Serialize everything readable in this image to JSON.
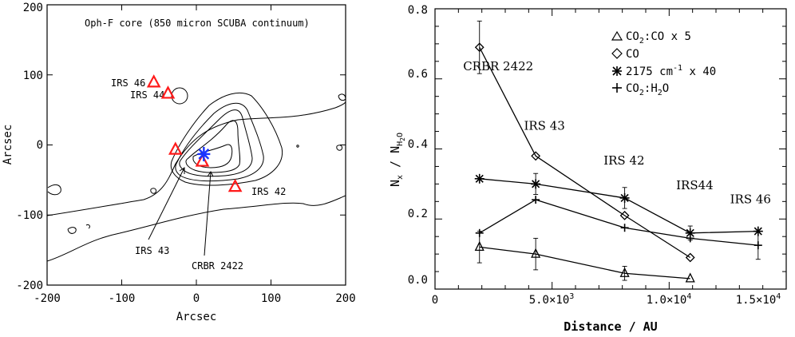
{
  "chart_data": [
    {
      "type": "contour",
      "title": "Oph-F core (850 micron SCUBA continuum)",
      "xlabel": "Arcsec",
      "ylabel": "Arcsec",
      "xlim": [
        -200,
        200
      ],
      "ylim": [
        -200,
        200
      ],
      "xticks": [
        -200,
        -100,
        0,
        100,
        200
      ],
      "yticks": [
        -200,
        -100,
        0,
        100,
        200
      ],
      "sources_triangles": [
        {
          "label": "IRS 46",
          "x": -57,
          "y": 89
        },
        {
          "label": "IRS 44",
          "x": -38,
          "y": 73
        },
        {
          "label": "IRS 43",
          "x": -28,
          "y": -7
        },
        {
          "label": "CRBR 2422",
          "x": 8,
          "y": -24
        },
        {
          "label": "IRS 42",
          "x": 52,
          "y": -60
        }
      ],
      "star_marker": {
        "x": 10,
        "y": -13,
        "color": "#1a33ff"
      },
      "triangle_color": "#ff1a1a"
    },
    {
      "type": "line",
      "xlabel": "Distance / AU",
      "ylabel": "N_x / N_H2O",
      "xlim": [
        0,
        15000
      ],
      "ylim": [
        0,
        0.8
      ],
      "xticks": [
        {
          "value": 0,
          "label": "0"
        },
        {
          "value": 5000,
          "mant": "5.0",
          "exp": "3"
        },
        {
          "value": 10000,
          "mant": "1.0",
          "exp": "4"
        },
        {
          "value": 15000,
          "mant": "1.5",
          "exp": "4"
        }
      ],
      "yticks": [
        "0.0",
        "0.2",
        "0.4",
        "0.6",
        "0.8"
      ],
      "legend_position": "top-right",
      "series": [
        {
          "name": "CO2:CO x 5",
          "marker": "triangle",
          "x": [
            1900,
            4300,
            8100,
            10900
          ],
          "y": [
            0.12,
            0.1,
            0.045,
            0.03
          ],
          "err": [
            0.045,
            0.045,
            0.02,
            0
          ]
        },
        {
          "name": "CO",
          "marker": "diamond",
          "x": [
            1900,
            4300,
            8100,
            10900
          ],
          "y": [
            0.69,
            0.38,
            0.21,
            0.09
          ],
          "err": [
            0.075,
            0,
            0,
            0
          ]
        },
        {
          "name": "2175 cm-1 x 40",
          "marker": "asterisk",
          "x": [
            1900,
            4300,
            8100,
            10900,
            13800
          ],
          "y": [
            0.315,
            0.3,
            0.26,
            0.16,
            0.165
          ],
          "err": [
            0,
            0.03,
            0.03,
            0.02,
            0
          ]
        },
        {
          "name": "CO2:H2O",
          "marker": "plus",
          "x": [
            1900,
            4300,
            8100,
            10900,
            13800
          ],
          "y": [
            0.16,
            0.255,
            0.175,
            0.145,
            0.125
          ],
          "err": [
            0,
            0,
            0,
            0,
            0.04
          ]
        }
      ],
      "annotations": [
        {
          "text": "CRBR 2422",
          "x": 1200,
          "y": 0.625
        },
        {
          "text": "IRS 43",
          "x": 3800,
          "y": 0.455
        },
        {
          "text": "IRS 42",
          "x": 7200,
          "y": 0.355
        },
        {
          "text": "IRS44",
          "x": 10300,
          "y": 0.285
        },
        {
          "text": "IRS 46",
          "x": 12600,
          "y": 0.245
        }
      ]
    }
  ],
  "legend": {
    "item1_pre": "CO",
    "item1_sub": "2",
    "item1_post": ":CO x 5",
    "item2": "CO",
    "item3_pre": "2175 cm",
    "item3_sup": "-1",
    "item3_post": " x 40",
    "item4_pre": "CO",
    "item4_sub": "2",
    "item4_post": ":H",
    "item4_sub2": "2",
    "item4_post2": "O"
  },
  "right_ylabel": {
    "n": "N",
    "x": "x",
    "slash": " / N",
    "h": "H",
    "two": "2",
    "o": "O"
  }
}
